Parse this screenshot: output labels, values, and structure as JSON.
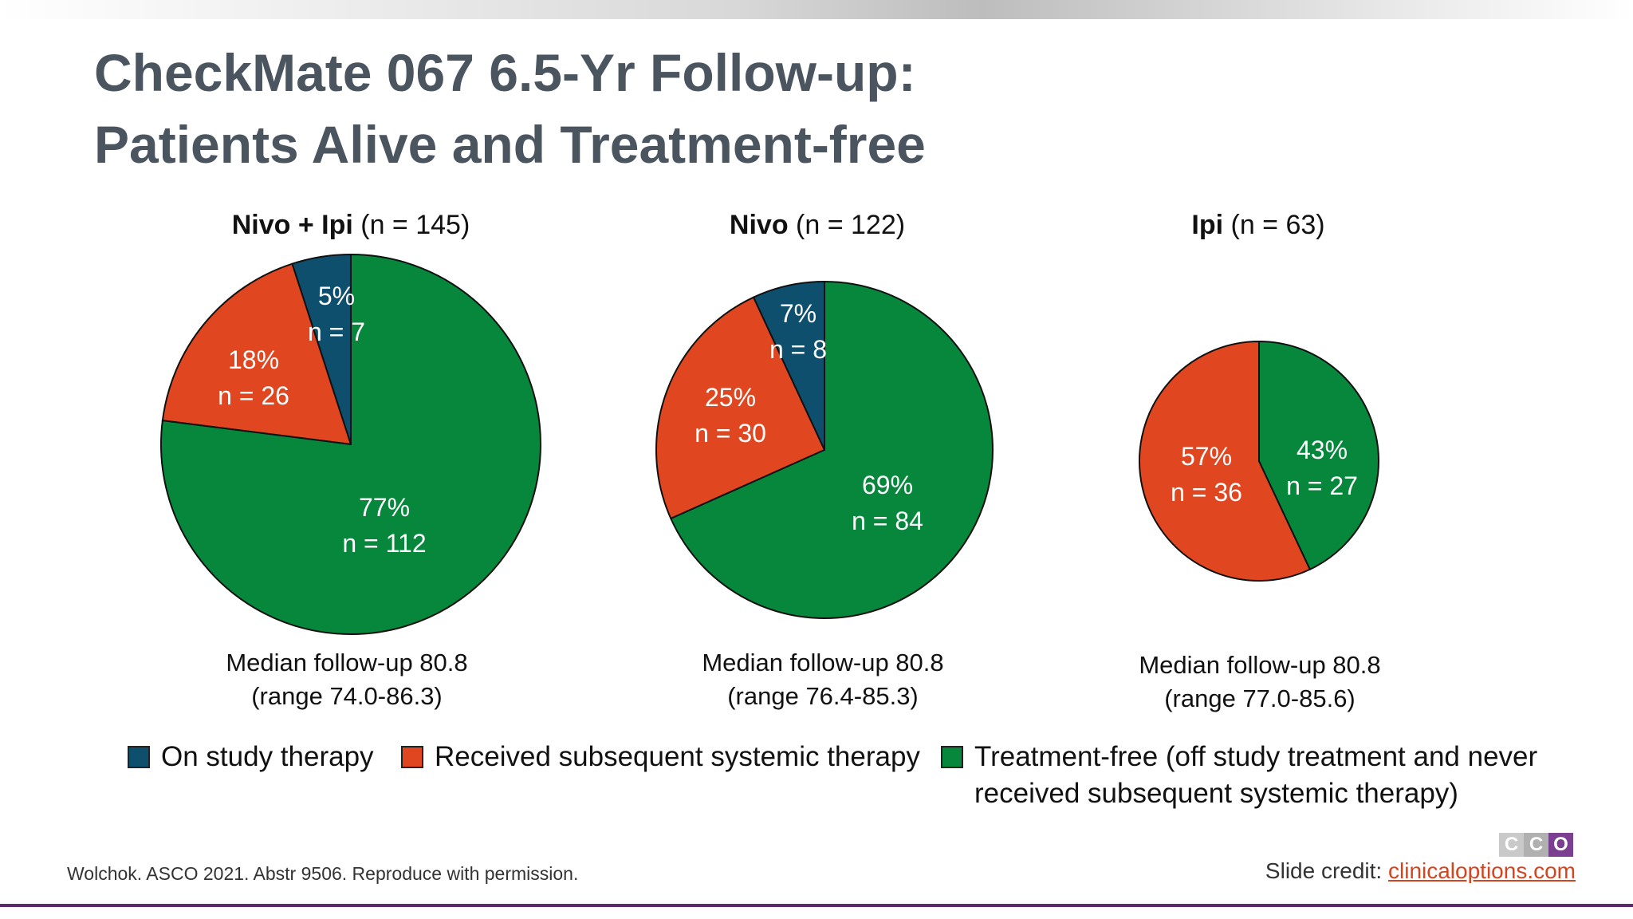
{
  "slide": {
    "title_line1": "CheckMate 067 6.5-Yr Follow-up:",
    "title_line2": "Patients Alive and Treatment-free",
    "footer_citation": "Wolchok. ASCO 2021. Abstr 9506. Reproduce with permission.",
    "credit_label": "Slide credit: ",
    "credit_link": "clinicaloptions.com",
    "logo_letters": [
      "C",
      "C",
      "O"
    ],
    "logo_colors": [
      "#c9c9c9",
      "#b0b0b0",
      "#7b3f91"
    ]
  },
  "colors": {
    "on_study": "#0e4f6e",
    "subsequent": "#e0461f",
    "treatment_free": "#06873c"
  },
  "legend": [
    {
      "label": "On study therapy",
      "color": "#0e4f6e"
    },
    {
      "label": "Received subsequent systemic therapy",
      "color": "#e0461f"
    },
    {
      "label": "Treatment-free (off study treatment and never received subsequent systemic therapy)",
      "color": "#06873c"
    }
  ],
  "chart_data": [
    {
      "type": "pie",
      "title_bold": "Nivo + Ipi",
      "title_rest": " (n = 145)",
      "followup_line1": "Median follow-up 80.8",
      "followup_line2": "(range 74.0-86.3)",
      "slices": [
        {
          "series": "On study therapy",
          "pct": 5,
          "label_pct": "5%",
          "label_n": "n = 7"
        },
        {
          "series": "Received subsequent systemic therapy",
          "pct": 18,
          "label_pct": "18%",
          "label_n": "n = 26"
        },
        {
          "series": "Treatment-free",
          "pct": 77,
          "label_pct": "77%",
          "label_n": "n = 112"
        }
      ]
    },
    {
      "type": "pie",
      "title_bold": "Nivo",
      "title_rest": " (n = 122)",
      "followup_line1": "Median follow-up 80.8",
      "followup_line2": "(range 76.4-85.3)",
      "slices": [
        {
          "series": "On study therapy",
          "pct": 7,
          "label_pct": "7%",
          "label_n": "n = 8"
        },
        {
          "series": "Received subsequent systemic therapy",
          "pct": 25,
          "label_pct": "25%",
          "label_n": "n = 30"
        },
        {
          "series": "Treatment-free",
          "pct": 69,
          "label_pct": "69%",
          "label_n": "n = 84"
        }
      ]
    },
    {
      "type": "pie",
      "title_bold": "Ipi",
      "title_rest": " (n = 63)",
      "followup_line1": "Median follow-up 80.8",
      "followup_line2": "(range 77.0-85.6)",
      "slices": [
        {
          "series": "Received subsequent systemic therapy",
          "pct": 57,
          "label_pct": "57%",
          "label_n": "n = 36"
        },
        {
          "series": "Treatment-free",
          "pct": 43,
          "label_pct": "43%",
          "label_n": "n = 27"
        }
      ]
    }
  ]
}
